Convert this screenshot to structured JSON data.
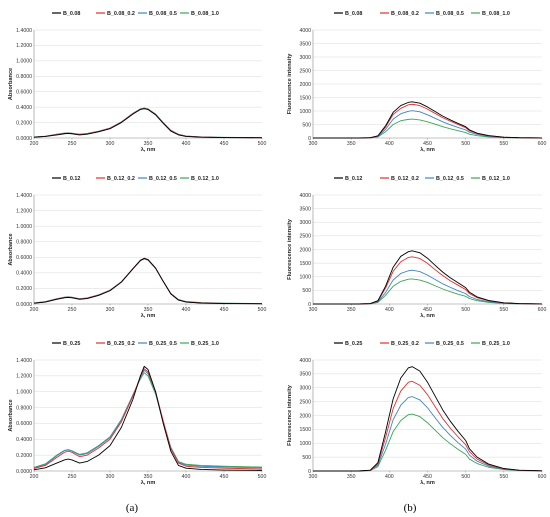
{
  "panel_labels": [
    "(a)",
    "(b)"
  ],
  "colors": {
    "black": "#000000",
    "red": "#e03030",
    "blue": "#3d86c6",
    "green": "#3aa655"
  },
  "chart_data": [
    {
      "type": "line",
      "ylabel": "Absorbance",
      "xlabel": "λ, nm",
      "xlim": [
        200,
        500
      ],
      "ylim": [
        0,
        1.4
      ],
      "xticks": [
        "200",
        "250",
        "300",
        "350",
        "400",
        "450",
        "500"
      ],
      "yticks": [
        "0.0000",
        "0.2000",
        "0.4000",
        "0.6000",
        "0.8000",
        "1.0000",
        "1.2000",
        "1.4000"
      ],
      "x": [
        200,
        215,
        230,
        240,
        245,
        250,
        260,
        270,
        285,
        300,
        315,
        330,
        340,
        345,
        350,
        360,
        370,
        380,
        390,
        400,
        420,
        450,
        500
      ],
      "series": [
        {
          "name": "B_0.08",
          "color": "#000000",
          "values": [
            0.01,
            0.02,
            0.04,
            0.055,
            0.06,
            0.055,
            0.04,
            0.05,
            0.08,
            0.12,
            0.2,
            0.31,
            0.37,
            0.38,
            0.37,
            0.3,
            0.19,
            0.09,
            0.04,
            0.02,
            0.01,
            0.005,
            0.003
          ]
        },
        {
          "name": "B_0.08_0.2",
          "color": "#e03030",
          "values": [
            0.01,
            0.02,
            0.045,
            0.06,
            0.062,
            0.058,
            0.045,
            0.055,
            0.085,
            0.125,
            0.205,
            0.315,
            0.372,
            0.382,
            0.372,
            0.305,
            0.195,
            0.095,
            0.045,
            0.022,
            0.012,
            0.006,
            0.003
          ]
        },
        {
          "name": "B_0.08_0.5",
          "color": "#3d86c6",
          "values": [
            0.012,
            0.022,
            0.048,
            0.062,
            0.064,
            0.06,
            0.047,
            0.057,
            0.087,
            0.127,
            0.207,
            0.317,
            0.375,
            0.385,
            0.375,
            0.308,
            0.198,
            0.098,
            0.047,
            0.024,
            0.013,
            0.007,
            0.004
          ]
        },
        {
          "name": "B_0.08_1.0",
          "color": "#3aa655",
          "values": [
            0.013,
            0.024,
            0.05,
            0.064,
            0.066,
            0.062,
            0.049,
            0.059,
            0.089,
            0.129,
            0.209,
            0.319,
            0.378,
            0.388,
            0.378,
            0.311,
            0.201,
            0.101,
            0.049,
            0.026,
            0.014,
            0.008,
            0.005
          ]
        }
      ]
    },
    {
      "type": "line",
      "ylabel": "Fluorescence intensity",
      "xlabel": "λ, nm",
      "xlim": [
        300,
        600
      ],
      "ylim": [
        0,
        4000
      ],
      "xticks": [
        "300",
        "350",
        "400",
        "450",
        "500",
        "550",
        "600"
      ],
      "yticks": [
        "0",
        "500",
        "1000",
        "1500",
        "2000",
        "2500",
        "3000",
        "3500",
        "4000"
      ],
      "x": [
        300,
        360,
        375,
        385,
        395,
        405,
        415,
        425,
        430,
        440,
        450,
        460,
        470,
        480,
        490,
        500,
        505,
        515,
        530,
        550,
        570,
        600
      ],
      "series": [
        {
          "name": "B_0.08",
          "color": "#000000",
          "values": [
            0,
            0,
            10,
            80,
            450,
            950,
            1200,
            1320,
            1340,
            1290,
            1150,
            980,
            810,
            670,
            540,
            420,
            300,
            180,
            90,
            30,
            10,
            2
          ]
        },
        {
          "name": "B_0.08_0.2",
          "color": "#e03030",
          "values": [
            0,
            0,
            9,
            70,
            400,
            870,
            1100,
            1230,
            1250,
            1200,
            1070,
            910,
            750,
            620,
            500,
            380,
            270,
            165,
            82,
            28,
            9,
            2
          ]
        },
        {
          "name": "B_0.08_0.5",
          "color": "#3d86c6",
          "values": [
            0,
            0,
            8,
            55,
            320,
            700,
            900,
            990,
            1010,
            970,
            860,
            730,
            600,
            490,
            390,
            300,
            215,
            130,
            65,
            22,
            7,
            1
          ]
        },
        {
          "name": "B_0.08_1.0",
          "color": "#3aa655",
          "values": [
            0,
            0,
            6,
            40,
            230,
            500,
            640,
            690,
            700,
            670,
            600,
            510,
            420,
            340,
            270,
            200,
            140,
            85,
            42,
            14,
            5,
            1
          ]
        }
      ]
    },
    {
      "type": "line",
      "ylabel": "Absorbance",
      "xlabel": "λ, nm",
      "xlim": [
        200,
        500
      ],
      "ylim": [
        0,
        1.4
      ],
      "xticks": [
        "200",
        "250",
        "300",
        "350",
        "400",
        "450",
        "500"
      ],
      "yticks": [
        "0.0000",
        "0.2000",
        "0.4000",
        "0.6000",
        "0.8000",
        "1.0000",
        "1.2000",
        "1.4000"
      ],
      "x": [
        200,
        215,
        230,
        240,
        245,
        250,
        260,
        270,
        285,
        300,
        315,
        330,
        340,
        345,
        350,
        360,
        370,
        380,
        390,
        400,
        420,
        450,
        500
      ],
      "series": [
        {
          "name": "B_0.12",
          "color": "#000000",
          "values": [
            0.01,
            0.025,
            0.06,
            0.08,
            0.085,
            0.08,
            0.06,
            0.07,
            0.11,
            0.17,
            0.28,
            0.45,
            0.56,
            0.585,
            0.57,
            0.46,
            0.29,
            0.13,
            0.05,
            0.025,
            0.012,
            0.006,
            0.003
          ]
        },
        {
          "name": "B_0.12_0.2",
          "color": "#e03030",
          "values": [
            0.011,
            0.027,
            0.064,
            0.084,
            0.088,
            0.083,
            0.064,
            0.074,
            0.114,
            0.174,
            0.284,
            0.453,
            0.563,
            0.588,
            0.573,
            0.463,
            0.293,
            0.133,
            0.053,
            0.027,
            0.013,
            0.007,
            0.004
          ]
        },
        {
          "name": "B_0.12_0.5",
          "color": "#3d86c6",
          "values": [
            0.012,
            0.029,
            0.066,
            0.086,
            0.09,
            0.085,
            0.066,
            0.076,
            0.116,
            0.176,
            0.285,
            0.452,
            0.56,
            0.584,
            0.569,
            0.46,
            0.292,
            0.134,
            0.055,
            0.029,
            0.015,
            0.008,
            0.005
          ]
        },
        {
          "name": "B_0.12_1.0",
          "color": "#3aa655",
          "values": [
            0.013,
            0.031,
            0.068,
            0.088,
            0.092,
            0.087,
            0.068,
            0.078,
            0.118,
            0.178,
            0.286,
            0.45,
            0.555,
            0.578,
            0.563,
            0.456,
            0.291,
            0.136,
            0.058,
            0.032,
            0.018,
            0.01,
            0.006
          ]
        }
      ]
    },
    {
      "type": "line",
      "ylabel": "Fluorescence intensity",
      "xlabel": "λ, nm",
      "xlim": [
        300,
        600
      ],
      "ylim": [
        0,
        4000
      ],
      "xticks": [
        "300",
        "350",
        "400",
        "450",
        "500",
        "550",
        "600"
      ],
      "yticks": [
        "0",
        "500",
        "1000",
        "1500",
        "2000",
        "2500",
        "3000",
        "3500",
        "4000"
      ],
      "x": [
        300,
        360,
        375,
        385,
        395,
        405,
        415,
        425,
        430,
        440,
        450,
        460,
        470,
        480,
        490,
        500,
        505,
        515,
        530,
        550,
        570,
        600
      ],
      "series": [
        {
          "name": "B_0.12",
          "color": "#000000",
          "values": [
            0,
            0,
            15,
            120,
            650,
            1350,
            1750,
            1920,
            1950,
            1880,
            1680,
            1420,
            1170,
            960,
            780,
            600,
            430,
            260,
            130,
            45,
            15,
            3
          ]
        },
        {
          "name": "B_0.12_0.2",
          "color": "#e03030",
          "values": [
            0,
            0,
            13,
            105,
            580,
            1200,
            1550,
            1710,
            1730,
            1670,
            1490,
            1260,
            1040,
            850,
            690,
            530,
            380,
            230,
            115,
            40,
            13,
            3
          ]
        },
        {
          "name": "B_0.12_0.5",
          "color": "#3d86c6",
          "values": [
            0,
            0,
            10,
            80,
            420,
            880,
            1120,
            1220,
            1240,
            1190,
            1060,
            900,
            740,
            610,
            490,
            380,
            270,
            165,
            82,
            28,
            9,
            2
          ]
        },
        {
          "name": "B_0.12_1.0",
          "color": "#3aa655",
          "values": [
            0,
            0,
            8,
            60,
            320,
            650,
            830,
            910,
            920,
            880,
            790,
            670,
            550,
            450,
            360,
            280,
            200,
            120,
            60,
            20,
            7,
            1
          ]
        }
      ]
    },
    {
      "type": "line",
      "ylabel": "Absorbance",
      "xlabel": "λ, nm",
      "xlim": [
        200,
        500
      ],
      "ylim": [
        0,
        1.4
      ],
      "xticks": [
        "200",
        "250",
        "300",
        "350",
        "400",
        "450",
        "500"
      ],
      "yticks": [
        "0.0000",
        "0.2000",
        "0.4000",
        "0.6000",
        "0.8000",
        "1.0000",
        "1.2000",
        "1.4000"
      ],
      "x": [
        200,
        215,
        230,
        240,
        245,
        250,
        260,
        270,
        285,
        300,
        315,
        330,
        340,
        345,
        350,
        360,
        370,
        380,
        390,
        400,
        420,
        450,
        500
      ],
      "series": [
        {
          "name": "B_0.25",
          "color": "#000000",
          "values": [
            0.015,
            0.04,
            0.1,
            0.14,
            0.15,
            0.14,
            0.1,
            0.12,
            0.2,
            0.32,
            0.55,
            0.9,
            1.2,
            1.32,
            1.28,
            1.0,
            0.6,
            0.25,
            0.07,
            0.035,
            0.02,
            0.012,
            0.008
          ]
        },
        {
          "name": "B_0.25_0.2",
          "color": "#e03030",
          "values": [
            0.03,
            0.07,
            0.17,
            0.235,
            0.25,
            0.235,
            0.18,
            0.2,
            0.29,
            0.4,
            0.62,
            0.94,
            1.19,
            1.29,
            1.25,
            1.0,
            0.63,
            0.28,
            0.1,
            0.06,
            0.045,
            0.035,
            0.025
          ]
        },
        {
          "name": "B_0.25_0.5",
          "color": "#3d86c6",
          "values": [
            0.04,
            0.08,
            0.19,
            0.255,
            0.265,
            0.25,
            0.2,
            0.22,
            0.31,
            0.42,
            0.64,
            0.95,
            1.18,
            1.27,
            1.23,
            0.99,
            0.63,
            0.29,
            0.11,
            0.075,
            0.06,
            0.05,
            0.04
          ]
        },
        {
          "name": "B_0.25_1.0",
          "color": "#3aa655",
          "values": [
            0.045,
            0.09,
            0.2,
            0.26,
            0.27,
            0.255,
            0.21,
            0.23,
            0.32,
            0.43,
            0.65,
            0.96,
            1.16,
            1.24,
            1.2,
            0.97,
            0.62,
            0.3,
            0.12,
            0.085,
            0.07,
            0.06,
            0.05
          ]
        }
      ]
    },
    {
      "type": "line",
      "ylabel": "Fluorescence intensity",
      "xlabel": "λ, nm",
      "xlim": [
        300,
        600
      ],
      "ylim": [
        0,
        4000
      ],
      "xticks": [
        "300",
        "350",
        "400",
        "450",
        "500",
        "550",
        "600"
      ],
      "yticks": [
        "0",
        "500",
        "1000",
        "1500",
        "2000",
        "2500",
        "3000",
        "3500",
        "4000"
      ],
      "x": [
        300,
        360,
        375,
        385,
        395,
        405,
        415,
        425,
        430,
        440,
        450,
        460,
        470,
        480,
        490,
        500,
        505,
        515,
        530,
        550,
        570,
        600
      ],
      "series": [
        {
          "name": "B_0.25",
          "color": "#000000",
          "values": [
            0,
            0,
            30,
            300,
            1400,
            2600,
            3350,
            3720,
            3760,
            3600,
            3200,
            2700,
            2200,
            1790,
            1430,
            1100,
            800,
            500,
            250,
            90,
            30,
            6
          ]
        },
        {
          "name": "B_0.25_0.2",
          "color": "#e03030",
          "values": [
            0,
            0,
            25,
            260,
            1200,
            2250,
            2880,
            3200,
            3230,
            3090,
            2750,
            2320,
            1890,
            1540,
            1230,
            950,
            690,
            430,
            215,
            78,
            26,
            5
          ]
        },
        {
          "name": "B_0.25_0.5",
          "color": "#3d86c6",
          "values": [
            0,
            0,
            20,
            210,
            960,
            1850,
            2370,
            2650,
            2680,
            2560,
            2280,
            1920,
            1570,
            1280,
            1020,
            790,
            570,
            355,
            178,
            65,
            22,
            4
          ]
        },
        {
          "name": "B_0.25_1.0",
          "color": "#3aa655",
          "values": [
            0,
            0,
            15,
            160,
            740,
            1420,
            1820,
            2030,
            2050,
            1960,
            1740,
            1470,
            1200,
            980,
            780,
            600,
            430,
            270,
            135,
            50,
            17,
            3
          ]
        }
      ]
    }
  ]
}
